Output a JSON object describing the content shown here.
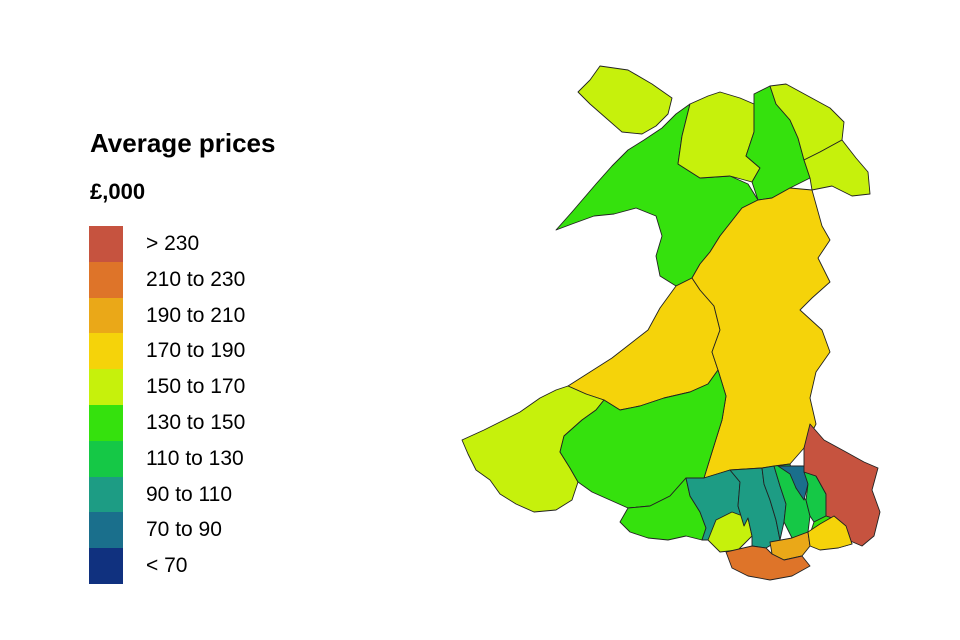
{
  "legend": {
    "title": "Average prices",
    "unit": "£,000",
    "bands": [
      {
        "label": "> 230",
        "color": "#c6533f"
      },
      {
        "label": "210 to 230",
        "color": "#de7429"
      },
      {
        "label": "190 to 210",
        "color": "#eaa818"
      },
      {
        "label": "170 to 190",
        "color": "#f5d30a"
      },
      {
        "label": "150 to 170",
        "color": "#c6f10c"
      },
      {
        "label": "130 to 150",
        "color": "#35e10d"
      },
      {
        "label": "110 to 130",
        "color": "#15c846"
      },
      {
        "label": "90 to 110",
        "color": "#1d9c84"
      },
      {
        "label": "70 to 90",
        "color": "#1a6f8c"
      },
      {
        "label": "< 70",
        "color": "#10317f"
      }
    ]
  },
  "regions": [
    {
      "id": "anglesey",
      "band": 4
    },
    {
      "id": "gwynedd",
      "band": 5
    },
    {
      "id": "conwy",
      "band": 4
    },
    {
      "id": "denbighshire",
      "band": 5
    },
    {
      "id": "flintshire",
      "band": 4
    },
    {
      "id": "wrexham",
      "band": 4
    },
    {
      "id": "ceredigion",
      "band": 3
    },
    {
      "id": "powys",
      "band": 3
    },
    {
      "id": "pembrokeshire",
      "band": 4
    },
    {
      "id": "carmarthenshire",
      "band": 5
    },
    {
      "id": "swansea",
      "band": 5
    },
    {
      "id": "neath-port-talbot",
      "band": 7
    },
    {
      "id": "bridgend",
      "band": 7
    },
    {
      "id": "gower-area",
      "band": 4
    },
    {
      "id": "rhondda-cynon-taf",
      "band": 7
    },
    {
      "id": "merthyr-tydfil",
      "band": 7
    },
    {
      "id": "caerphilly",
      "band": 6
    },
    {
      "id": "blaenau-gwent",
      "band": 8
    },
    {
      "id": "torfaen",
      "band": 6
    },
    {
      "id": "newport",
      "band": 5
    },
    {
      "id": "monmouthshire",
      "band": 0
    },
    {
      "id": "vale-of-glamorgan",
      "band": 1
    },
    {
      "id": "cardiff",
      "band": 2
    },
    {
      "id": "newport-coast",
      "band": 3
    }
  ]
}
